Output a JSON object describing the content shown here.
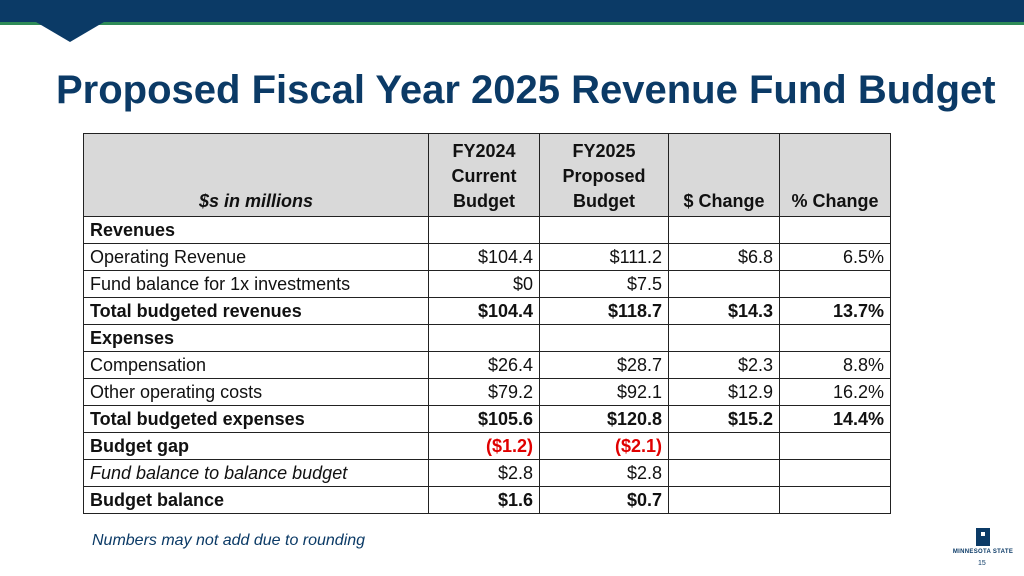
{
  "title": "Proposed Fiscal Year 2025 Revenue Fund Budget",
  "table": {
    "header": {
      "label": "$s in millions",
      "col1": [
        "FY2024",
        "Current",
        "Budget"
      ],
      "col2": [
        "FY2025",
        "Proposed",
        "Budget"
      ],
      "col3": "$ Change",
      "col4": "% Change"
    },
    "rows": [
      {
        "label": "Revenues",
        "fy2024": "",
        "fy2025": "",
        "change": "",
        "pct": ""
      },
      {
        "label": "Operating Revenue",
        "fy2024": "$104.4",
        "fy2025": "$111.2",
        "change": "$6.8",
        "pct": "6.5%"
      },
      {
        "label": "Fund balance for 1x investments",
        "fy2024": "$0",
        "fy2025": "$7.5",
        "change": "",
        "pct": ""
      },
      {
        "label": "Total budgeted revenues",
        "fy2024": "$104.4",
        "fy2025": "$118.7",
        "change": "$14.3",
        "pct": "13.7%"
      },
      {
        "label": "Expenses",
        "fy2024": "",
        "fy2025": "",
        "change": "",
        "pct": ""
      },
      {
        "label": "Compensation",
        "fy2024": "$26.4",
        "fy2025": "$28.7",
        "change": "$2.3",
        "pct": "8.8%"
      },
      {
        "label": "Other operating costs",
        "fy2024": "$79.2",
        "fy2025": "$92.1",
        "change": "$12.9",
        "pct": "16.2%"
      },
      {
        "label": "Total budgeted expenses",
        "fy2024": "$105.6",
        "fy2025": "$120.8",
        "change": "$15.2",
        "pct": "14.4%"
      },
      {
        "label": "Budget gap",
        "fy2024": "($1.2)",
        "fy2025": "($2.1)",
        "change": "",
        "pct": ""
      },
      {
        "label": "Fund balance to balance budget",
        "fy2024": "$2.8",
        "fy2025": "$2.8",
        "change": "",
        "pct": ""
      },
      {
        "label": "Budget balance",
        "fy2024": "$1.6",
        "fy2025": "$0.7",
        "change": "",
        "pct": ""
      }
    ]
  },
  "footnote": "Numbers may not add due to rounding",
  "logo": {
    "text": "MINNESOTA STATE",
    "icon": "minnesota-state-logo-icon"
  },
  "page_number": "15",
  "colors": {
    "brand": "#0b3a66",
    "accent": "#2e8b57",
    "negative": "#e00000",
    "header_bg": "#d9d9d9"
  }
}
